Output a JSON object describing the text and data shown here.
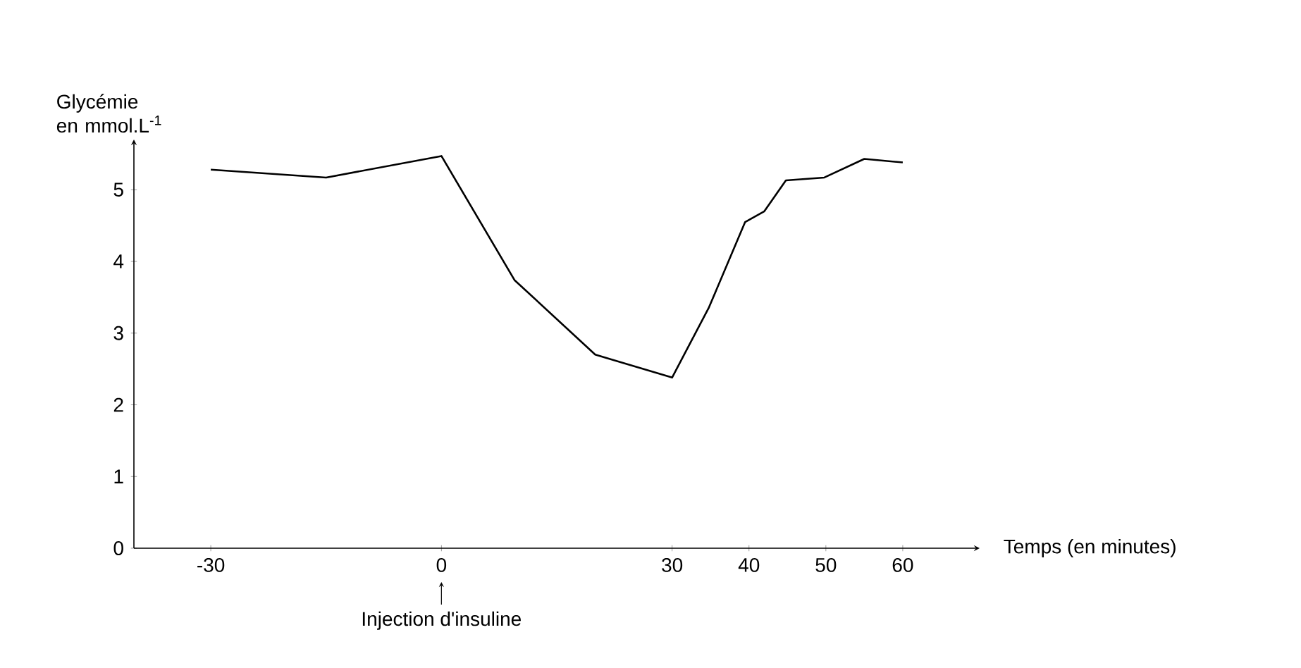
{
  "chart_data": {
    "type": "line",
    "xlabel": "Temps (en minutes)",
    "ylabel": "Glycémie en mmol.L$^{-1}$",
    "x": [
      -30,
      -15,
      0,
      9.5,
      20,
      30,
      34.8,
      39.5,
      42,
      44.8,
      49.8,
      55,
      60
    ],
    "series": [
      {
        "color": "#000000",
        "values": [
          5.28,
          5.17,
          5.47,
          3.74,
          2.7,
          2.38,
          3.36,
          4.55,
          4.7,
          5.13,
          5.17,
          5.43,
          5.38
        ]
      }
    ],
    "xlim": [
      -40,
      70
    ],
    "ylim": [
      0,
      5.7
    ],
    "xticks": [
      -30,
      0,
      30,
      40,
      50,
      60
    ],
    "yticks": [
      0,
      1,
      2,
      3,
      4,
      5
    ],
    "annotations": [
      "Injection d'insuline"
    ],
    "grid": false,
    "marker": "none",
    "line_style": "solid"
  }
}
